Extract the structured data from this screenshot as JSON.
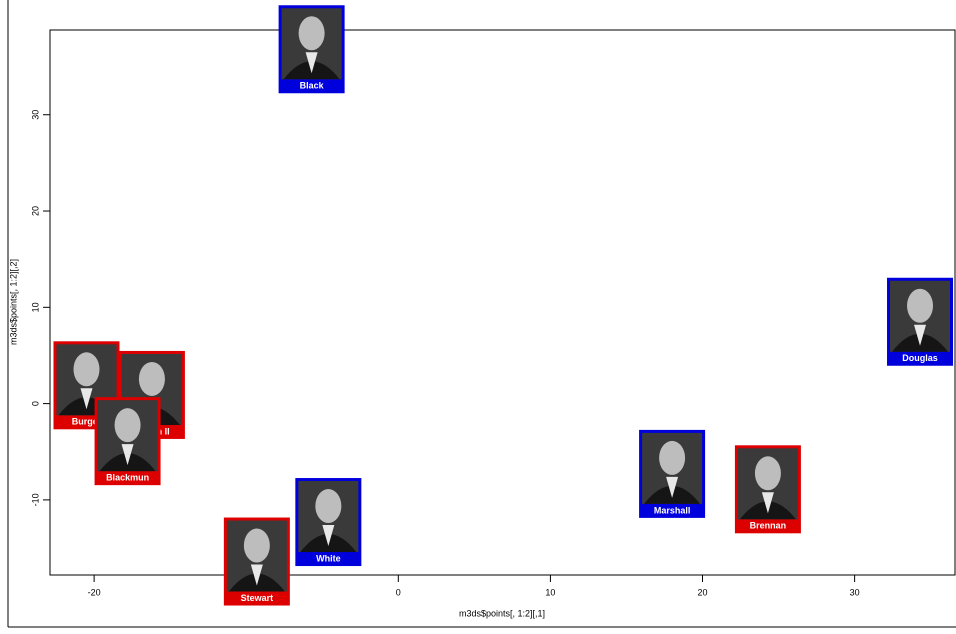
{
  "chart_data": {
    "type": "scatter",
    "x_label": "m3ds$points[, 1:2][,1]",
    "y_label": "m3ds$points[, 1:2][,2]",
    "xlim": [
      -22.9,
      36.6
    ],
    "ylim": [
      -17.8,
      38.8
    ],
    "xticks": [
      -20,
      -10,
      0,
      10,
      20,
      30
    ],
    "yticks": [
      -10,
      0,
      10,
      20,
      30
    ],
    "points": [
      {
        "label": "Black",
        "x": -5.7,
        "y": 36.8,
        "color": "#0000dd"
      },
      {
        "label": "Douglas",
        "x": 34.3,
        "y": 8.5,
        "color": "#0000dd"
      },
      {
        "label": "Burger",
        "x": -20.5,
        "y": 1.9,
        "color": "#dd0000"
      },
      {
        "label": "Harlan II",
        "x": -16.2,
        "y": 0.9,
        "color": "#dd0000"
      },
      {
        "label": "Blackmun",
        "x": -17.8,
        "y": -3.9,
        "color": "#dd0000"
      },
      {
        "label": "Stewart",
        "x": -9.3,
        "y": -16.4,
        "color": "#dd0000"
      },
      {
        "label": "White",
        "x": -4.6,
        "y": -12.3,
        "color": "#0000dd"
      },
      {
        "label": "Marshall",
        "x": 18.0,
        "y": -7.3,
        "color": "#0000dd"
      },
      {
        "label": "Brennan",
        "x": 24.3,
        "y": -8.9,
        "color": "#dd0000"
      }
    ]
  }
}
